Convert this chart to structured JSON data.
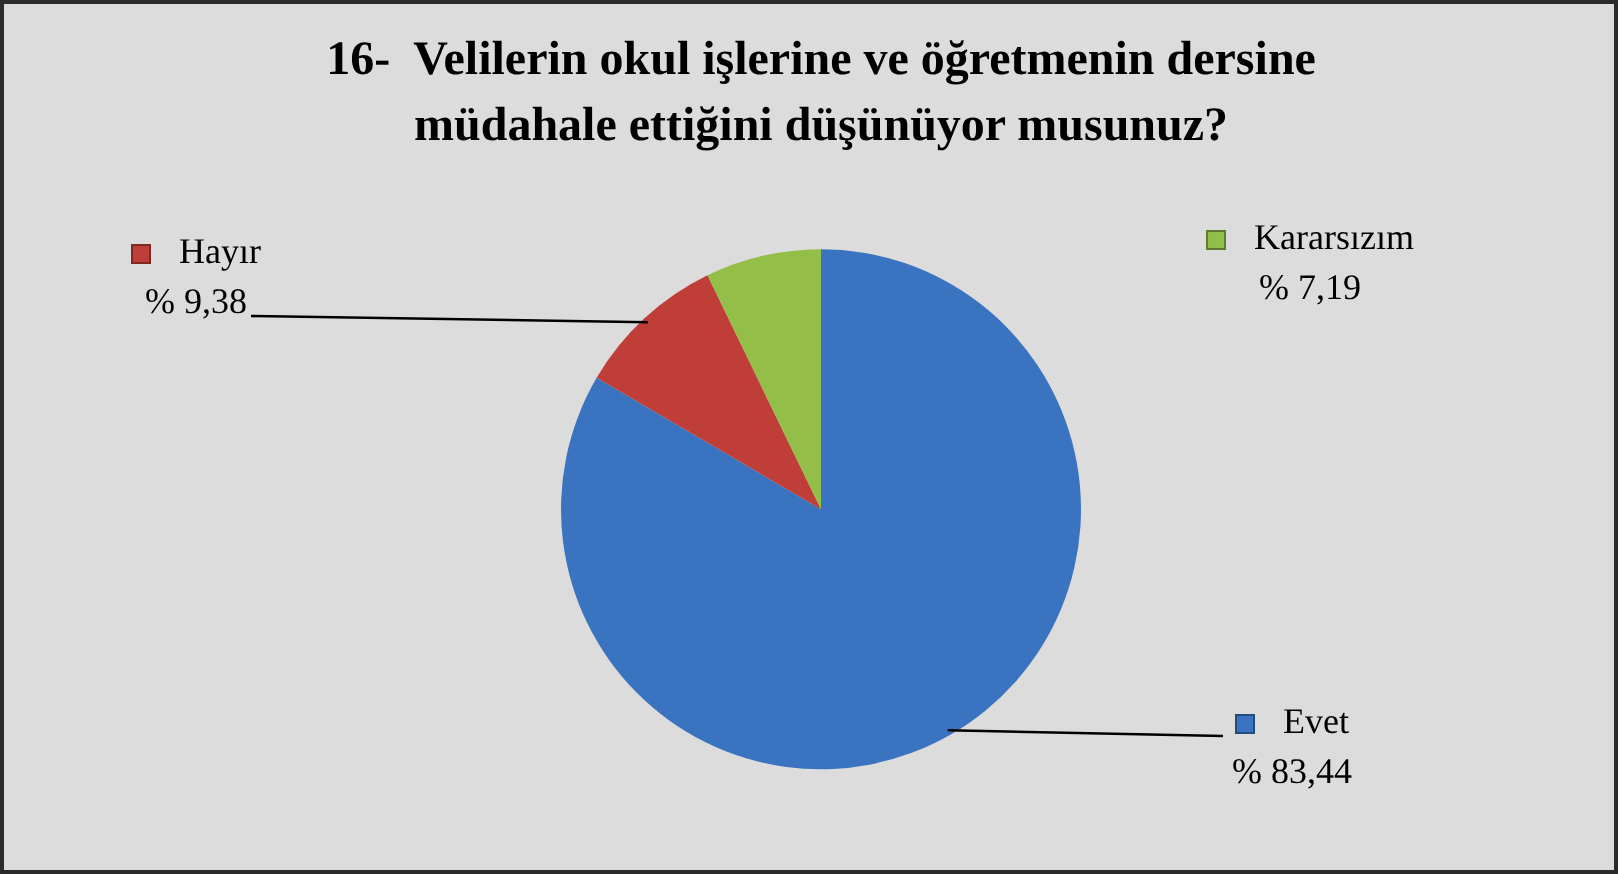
{
  "chart_data": {
    "type": "pie",
    "title": "16-  Velilerin okul işlerine ve öğretmenin dersine müdahale ettiğini düşünüyor musunuz?",
    "categories": [
      "Evet",
      "Hayır",
      "Kararsızım"
    ],
    "values": [
      83.44,
      9.38,
      7.19
    ],
    "colors": [
      "#3a73bf",
      "#bf3f38",
      "#93be48"
    ],
    "value_labels": [
      "% 83,44",
      "% 9,38",
      "% 7,19"
    ],
    "legend": "top left"
  }
}
